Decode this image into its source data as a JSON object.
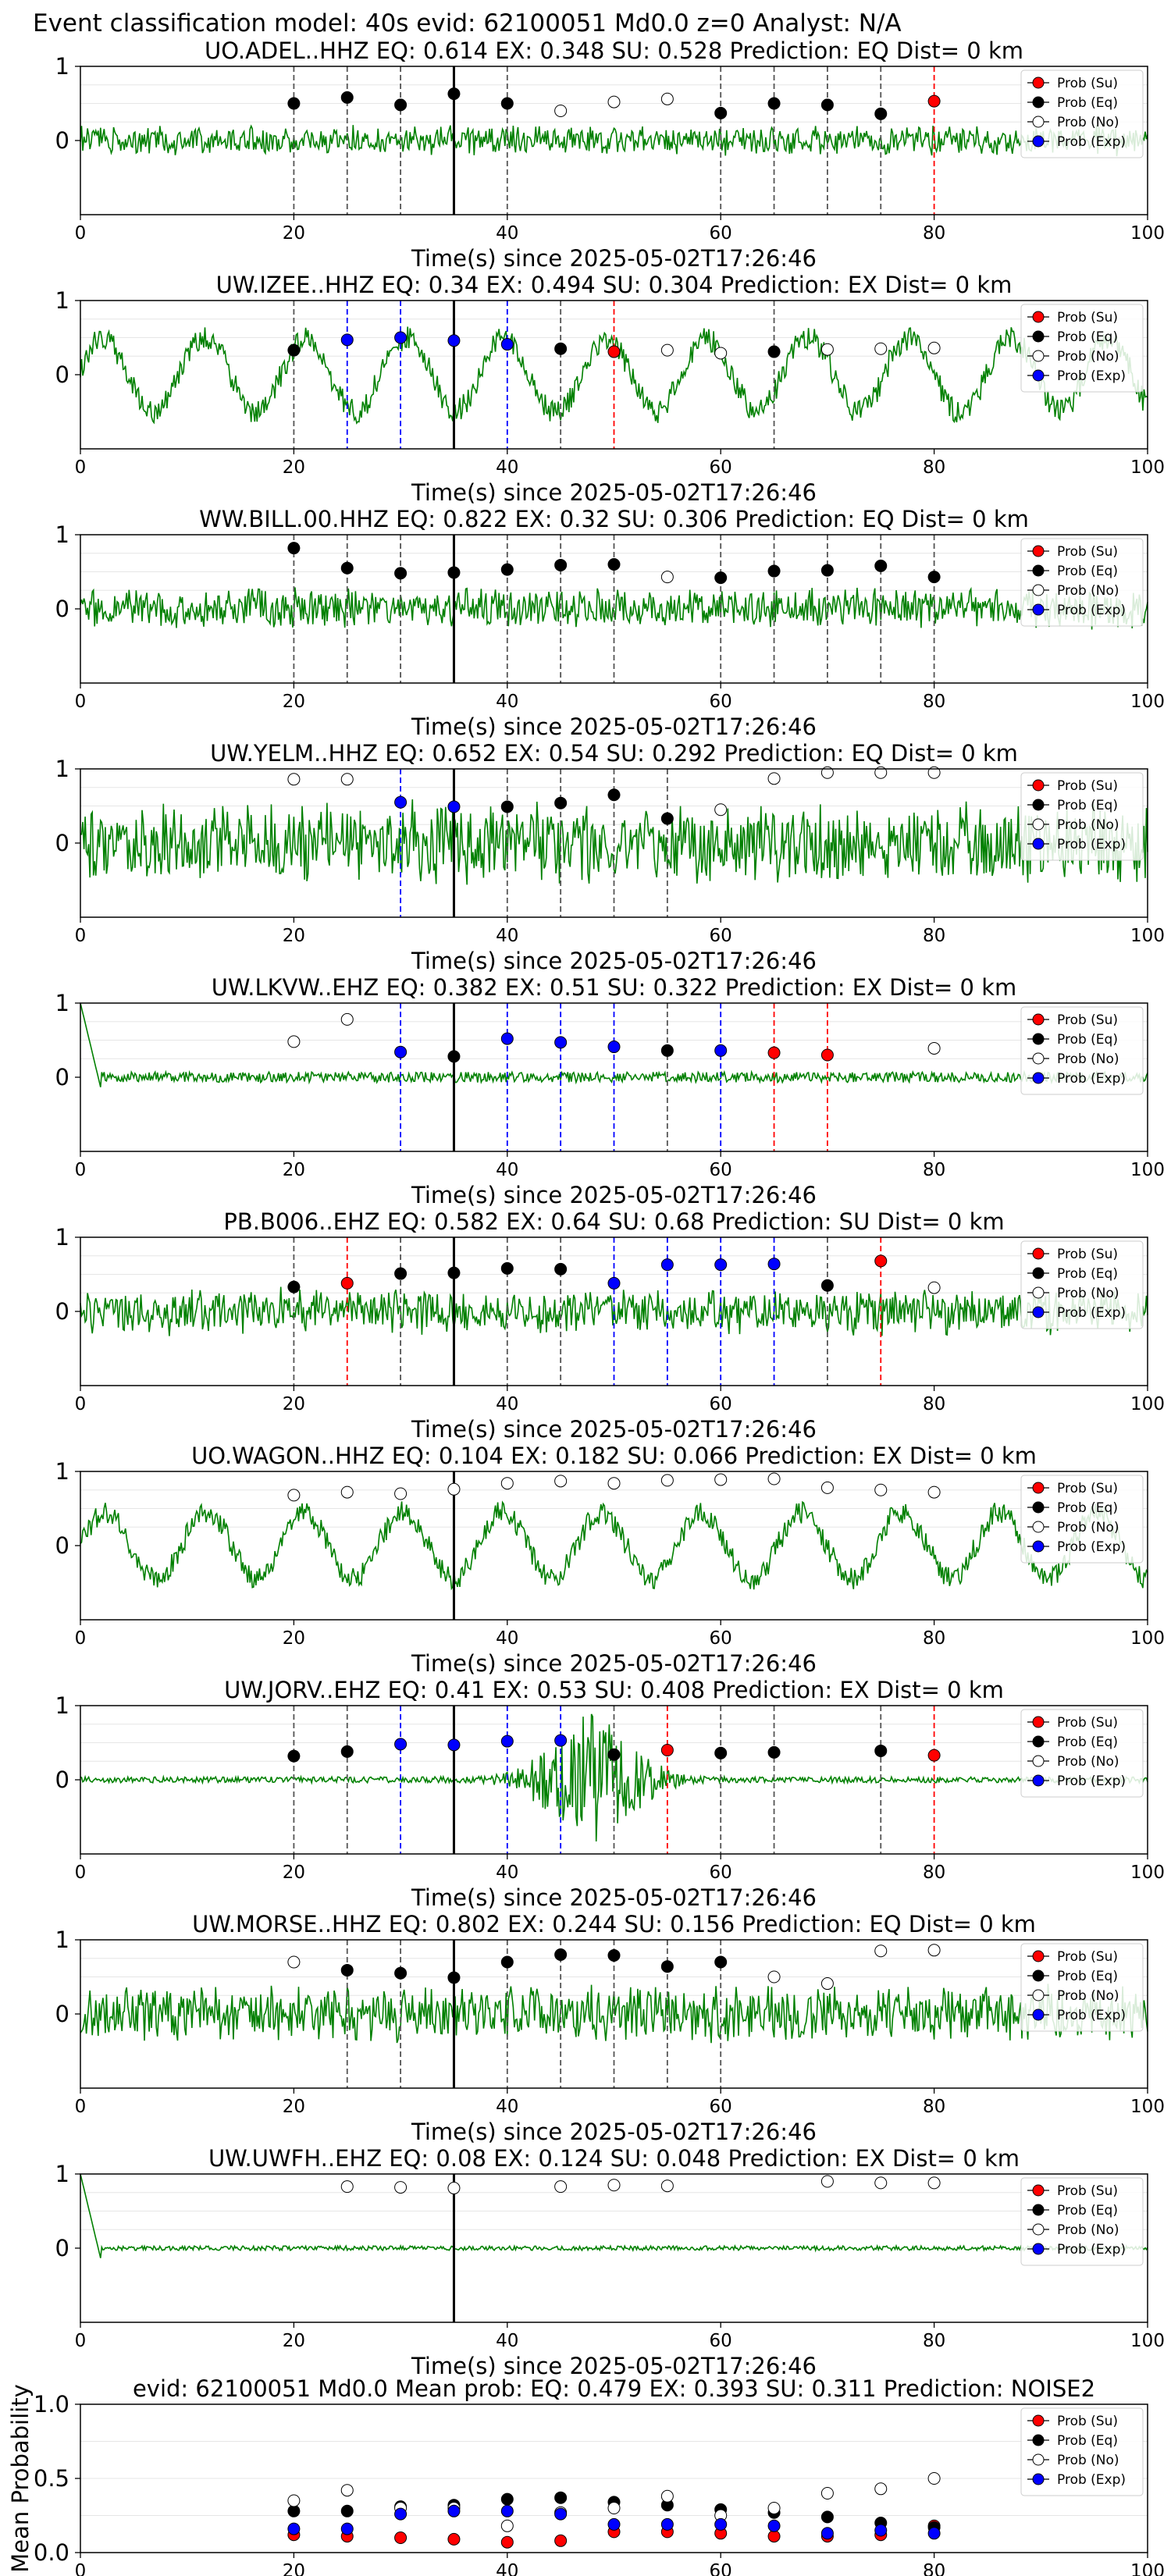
{
  "title": "Event classification model: 40s evid: 62100051 Md0.0 z=0 Analyst: N/A",
  "xlabel": "Time(s) since 2025-05-02T17:26:46",
  "colors": {
    "waveform": "#008000",
    "su": "#ff0000",
    "eq": "#000000",
    "no": "#ffffff",
    "exp": "#0000ff",
    "grid": "#e6e6e6"
  },
  "legend": [
    {
      "key": "su",
      "label": "Prob (Su)"
    },
    {
      "key": "eq",
      "label": "Prob (Eq)"
    },
    {
      "key": "no",
      "label": "Prob (No)"
    },
    {
      "key": "exp",
      "label": "Prob (Exp)"
    }
  ],
  "chart_data": [
    {
      "type": "scatter",
      "station": "UO.ADEL..HHZ",
      "title": "UO.ADEL..HHZ   EQ: 0.614  EX: 0.348  SU: 0.528   Prediction: EQ    Dist= 0 km",
      "xlim": [
        0,
        100
      ],
      "ylim": [
        -1,
        1
      ],
      "xticks": [
        0,
        20,
        40,
        60,
        80,
        100
      ],
      "yticks": [
        1,
        0
      ],
      "grid": true,
      "legend": "upper right",
      "pick_time": 35,
      "waveform": {
        "amp": 0.18,
        "style": "noise",
        "seed": 1
      },
      "points": [
        {
          "x": 20,
          "p": 0.5,
          "c": "eq"
        },
        {
          "x": 25,
          "p": 0.58,
          "c": "eq"
        },
        {
          "x": 30,
          "p": 0.48,
          "c": "eq"
        },
        {
          "x": 35,
          "p": 0.63,
          "c": "eq"
        },
        {
          "x": 40,
          "p": 0.5,
          "c": "eq"
        },
        {
          "x": 45,
          "p": 0.4,
          "c": "no"
        },
        {
          "x": 50,
          "p": 0.52,
          "c": "no"
        },
        {
          "x": 55,
          "p": 0.56,
          "c": "no"
        },
        {
          "x": 60,
          "p": 0.37,
          "c": "eq"
        },
        {
          "x": 65,
          "p": 0.5,
          "c": "eq"
        },
        {
          "x": 70,
          "p": 0.48,
          "c": "eq"
        },
        {
          "x": 75,
          "p": 0.36,
          "c": "eq"
        },
        {
          "x": 80,
          "p": 0.53,
          "c": "su"
        }
      ]
    },
    {
      "type": "scatter",
      "station": "UW.IZEE..HHZ",
      "title": "UW.IZEE..HHZ   EQ: 0.34  EX: 0.494  SU: 0.304   Prediction: EX    Dist= 0 km",
      "xlim": [
        0,
        100
      ],
      "ylim": [
        -1,
        1
      ],
      "xticks": [
        0,
        20,
        40,
        60,
        80,
        100
      ],
      "yticks": [
        1,
        0
      ],
      "grid": true,
      "legend": "upper right",
      "pick_time": 35,
      "waveform": {
        "amp": 0.55,
        "style": "swell",
        "seed": 2
      },
      "points": [
        {
          "x": 20,
          "p": 0.33,
          "c": "eq"
        },
        {
          "x": 25,
          "p": 0.47,
          "c": "exp"
        },
        {
          "x": 30,
          "p": 0.5,
          "c": "exp"
        },
        {
          "x": 35,
          "p": 0.46,
          "c": "exp"
        },
        {
          "x": 40,
          "p": 0.41,
          "c": "exp"
        },
        {
          "x": 45,
          "p": 0.35,
          "c": "eq"
        },
        {
          "x": 50,
          "p": 0.31,
          "c": "su"
        },
        {
          "x": 55,
          "p": 0.33,
          "c": "no"
        },
        {
          "x": 60,
          "p": 0.29,
          "c": "no"
        },
        {
          "x": 65,
          "p": 0.31,
          "c": "eq"
        },
        {
          "x": 70,
          "p": 0.34,
          "c": "no"
        },
        {
          "x": 75,
          "p": 0.35,
          "c": "no"
        },
        {
          "x": 80,
          "p": 0.36,
          "c": "no"
        }
      ]
    },
    {
      "type": "scatter",
      "station": "WW.BILL.00.HHZ",
      "title": "WW.BILL.00.HHZ   EQ: 0.822  EX: 0.32  SU: 0.306   Prediction: EQ    Dist= 0 km",
      "xlim": [
        0,
        100
      ],
      "ylim": [
        -1,
        1
      ],
      "xticks": [
        0,
        20,
        40,
        60,
        80,
        100
      ],
      "yticks": [
        1,
        0
      ],
      "grid": true,
      "legend": "upper right",
      "pick_time": 35,
      "waveform": {
        "amp": 0.25,
        "style": "noise",
        "seed": 3
      },
      "points": [
        {
          "x": 20,
          "p": 0.82,
          "c": "eq"
        },
        {
          "x": 25,
          "p": 0.55,
          "c": "eq"
        },
        {
          "x": 30,
          "p": 0.48,
          "c": "eq"
        },
        {
          "x": 35,
          "p": 0.49,
          "c": "eq"
        },
        {
          "x": 40,
          "p": 0.53,
          "c": "eq"
        },
        {
          "x": 45,
          "p": 0.59,
          "c": "eq"
        },
        {
          "x": 50,
          "p": 0.6,
          "c": "eq"
        },
        {
          "x": 55,
          "p": 0.43,
          "c": "no"
        },
        {
          "x": 60,
          "p": 0.42,
          "c": "eq"
        },
        {
          "x": 65,
          "p": 0.51,
          "c": "eq"
        },
        {
          "x": 70,
          "p": 0.52,
          "c": "eq"
        },
        {
          "x": 75,
          "p": 0.58,
          "c": "eq"
        },
        {
          "x": 80,
          "p": 0.43,
          "c": "eq"
        }
      ]
    },
    {
      "type": "scatter",
      "station": "UW.YELM..HHZ",
      "title": "UW.YELM..HHZ   EQ: 0.652  EX: 0.54  SU: 0.292   Prediction: EQ    Dist= 0 km",
      "xlim": [
        0,
        100
      ],
      "ylim": [
        -1,
        1
      ],
      "xticks": [
        0,
        20,
        40,
        60,
        80,
        100
      ],
      "yticks": [
        1,
        0
      ],
      "grid": true,
      "legend": "upper right",
      "pick_time": 35,
      "waveform": {
        "amp": 0.5,
        "style": "noise",
        "seed": 4
      },
      "points": [
        {
          "x": 20,
          "p": 0.86,
          "c": "no"
        },
        {
          "x": 25,
          "p": 0.86,
          "c": "no"
        },
        {
          "x": 30,
          "p": 0.55,
          "c": "exp"
        },
        {
          "x": 35,
          "p": 0.49,
          "c": "exp"
        },
        {
          "x": 40,
          "p": 0.49,
          "c": "eq"
        },
        {
          "x": 45,
          "p": 0.54,
          "c": "eq"
        },
        {
          "x": 50,
          "p": 0.65,
          "c": "eq"
        },
        {
          "x": 55,
          "p": 0.33,
          "c": "eq"
        },
        {
          "x": 60,
          "p": 0.45,
          "c": "no"
        },
        {
          "x": 65,
          "p": 0.87,
          "c": "no"
        },
        {
          "x": 70,
          "p": 0.95,
          "c": "no"
        },
        {
          "x": 75,
          "p": 0.95,
          "c": "no"
        },
        {
          "x": 80,
          "p": 0.95,
          "c": "no"
        }
      ]
    },
    {
      "type": "scatter",
      "station": "UW.LKVW..EHZ",
      "title": "UW.LKVW..EHZ   EQ: 0.382  EX: 0.51  SU: 0.322   Prediction: EX    Dist= 0 km",
      "xlim": [
        0,
        100
      ],
      "ylim": [
        -1,
        1
      ],
      "xticks": [
        0,
        20,
        40,
        60,
        80,
        100
      ],
      "yticks": [
        1,
        0
      ],
      "grid": true,
      "legend": "upper right",
      "pick_time": 35,
      "waveform": {
        "amp": 0.07,
        "style": "start",
        "seed": 5
      },
      "points": [
        {
          "x": 20,
          "p": 0.48,
          "c": "no"
        },
        {
          "x": 25,
          "p": 0.78,
          "c": "no"
        },
        {
          "x": 30,
          "p": 0.34,
          "c": "exp"
        },
        {
          "x": 35,
          "p": 0.28,
          "c": "eq"
        },
        {
          "x": 40,
          "p": 0.52,
          "c": "exp"
        },
        {
          "x": 45,
          "p": 0.47,
          "c": "exp"
        },
        {
          "x": 50,
          "p": 0.41,
          "c": "exp"
        },
        {
          "x": 55,
          "p": 0.36,
          "c": "eq"
        },
        {
          "x": 60,
          "p": 0.36,
          "c": "exp"
        },
        {
          "x": 65,
          "p": 0.33,
          "c": "su"
        },
        {
          "x": 70,
          "p": 0.3,
          "c": "su"
        },
        {
          "x": 80,
          "p": 0.39,
          "c": "no"
        }
      ]
    },
    {
      "type": "scatter",
      "station": "PB.B006..EHZ",
      "title": "PB.B006..EHZ   EQ: 0.582  EX: 0.64  SU: 0.68   Prediction: SU    Dist= 0 km",
      "xlim": [
        0,
        100
      ],
      "ylim": [
        -1,
        1
      ],
      "xticks": [
        0,
        20,
        40,
        60,
        80,
        100
      ],
      "yticks": [
        1,
        0
      ],
      "grid": true,
      "legend": "upper right",
      "pick_time": 35,
      "waveform": {
        "amp": 0.28,
        "style": "noise",
        "seed": 6
      },
      "points": [
        {
          "x": 20,
          "p": 0.33,
          "c": "eq"
        },
        {
          "x": 25,
          "p": 0.38,
          "c": "su"
        },
        {
          "x": 30,
          "p": 0.51,
          "c": "eq"
        },
        {
          "x": 35,
          "p": 0.52,
          "c": "eq"
        },
        {
          "x": 40,
          "p": 0.58,
          "c": "eq"
        },
        {
          "x": 45,
          "p": 0.57,
          "c": "eq"
        },
        {
          "x": 50,
          "p": 0.38,
          "c": "exp"
        },
        {
          "x": 55,
          "p": 0.63,
          "c": "exp"
        },
        {
          "x": 60,
          "p": 0.63,
          "c": "exp"
        },
        {
          "x": 65,
          "p": 0.64,
          "c": "exp"
        },
        {
          "x": 70,
          "p": 0.35,
          "c": "eq"
        },
        {
          "x": 75,
          "p": 0.68,
          "c": "su"
        },
        {
          "x": 80,
          "p": 0.32,
          "c": "no"
        }
      ]
    },
    {
      "type": "scatter",
      "station": "UO.WAGON..HHZ",
      "title": "UO.WAGON..HHZ   EQ: 0.104  EX: 0.182  SU: 0.066   Prediction: EX    Dist= 0 km",
      "xlim": [
        0,
        100
      ],
      "ylim": [
        -1,
        1
      ],
      "xticks": [
        0,
        20,
        40,
        60,
        80,
        100
      ],
      "yticks": [
        1,
        0
      ],
      "grid": true,
      "legend": "upper right",
      "pick_time": 35,
      "waveform": {
        "amp": 0.5,
        "style": "swell",
        "seed": 7
      },
      "points": [
        {
          "x": 20,
          "p": 0.68,
          "c": "no"
        },
        {
          "x": 25,
          "p": 0.72,
          "c": "no"
        },
        {
          "x": 30,
          "p": 0.7,
          "c": "no"
        },
        {
          "x": 35,
          "p": 0.76,
          "c": "no"
        },
        {
          "x": 40,
          "p": 0.84,
          "c": "no"
        },
        {
          "x": 45,
          "p": 0.87,
          "c": "no"
        },
        {
          "x": 50,
          "p": 0.84,
          "c": "no"
        },
        {
          "x": 55,
          "p": 0.88,
          "c": "no"
        },
        {
          "x": 60,
          "p": 0.89,
          "c": "no"
        },
        {
          "x": 65,
          "p": 0.9,
          "c": "no"
        },
        {
          "x": 70,
          "p": 0.78,
          "c": "no"
        },
        {
          "x": 75,
          "p": 0.75,
          "c": "no"
        },
        {
          "x": 80,
          "p": 0.72,
          "c": "no"
        }
      ]
    },
    {
      "type": "scatter",
      "station": "UW.JORV..EHZ",
      "title": "UW.JORV..EHZ   EQ: 0.41  EX: 0.53  SU: 0.408   Prediction: EX    Dist= 0 km",
      "xlim": [
        0,
        100
      ],
      "ylim": [
        -1,
        1
      ],
      "xticks": [
        0,
        20,
        40,
        60,
        80,
        100
      ],
      "yticks": [
        1,
        0
      ],
      "grid": true,
      "legend": "upper right",
      "pick_time": 35,
      "waveform": {
        "amp": 0.04,
        "style": "burst",
        "seed": 8
      },
      "points": [
        {
          "x": 20,
          "p": 0.32,
          "c": "eq"
        },
        {
          "x": 25,
          "p": 0.38,
          "c": "eq"
        },
        {
          "x": 30,
          "p": 0.48,
          "c": "exp"
        },
        {
          "x": 35,
          "p": 0.47,
          "c": "exp"
        },
        {
          "x": 40,
          "p": 0.52,
          "c": "exp"
        },
        {
          "x": 45,
          "p": 0.53,
          "c": "exp"
        },
        {
          "x": 50,
          "p": 0.34,
          "c": "eq"
        },
        {
          "x": 55,
          "p": 0.4,
          "c": "su"
        },
        {
          "x": 60,
          "p": 0.36,
          "c": "eq"
        },
        {
          "x": 65,
          "p": 0.37,
          "c": "eq"
        },
        {
          "x": 75,
          "p": 0.39,
          "c": "eq"
        },
        {
          "x": 80,
          "p": 0.33,
          "c": "su"
        }
      ]
    },
    {
      "type": "scatter",
      "station": "UW.MORSE..HHZ",
      "title": "UW.MORSE..HHZ   EQ: 0.802  EX: 0.244  SU: 0.156   Prediction: EQ    Dist= 0 km",
      "xlim": [
        0,
        100
      ],
      "ylim": [
        -1,
        1
      ],
      "xticks": [
        0,
        20,
        40,
        60,
        80,
        100
      ],
      "yticks": [
        1,
        0
      ],
      "grid": true,
      "legend": "upper right",
      "pick_time": 35,
      "waveform": {
        "amp": 0.35,
        "style": "noise",
        "seed": 9
      },
      "points": [
        {
          "x": 20,
          "p": 0.7,
          "c": "no"
        },
        {
          "x": 25,
          "p": 0.59,
          "c": "eq"
        },
        {
          "x": 30,
          "p": 0.55,
          "c": "eq"
        },
        {
          "x": 35,
          "p": 0.49,
          "c": "eq"
        },
        {
          "x": 40,
          "p": 0.7,
          "c": "eq"
        },
        {
          "x": 45,
          "p": 0.8,
          "c": "eq"
        },
        {
          "x": 50,
          "p": 0.79,
          "c": "eq"
        },
        {
          "x": 55,
          "p": 0.64,
          "c": "eq"
        },
        {
          "x": 60,
          "p": 0.7,
          "c": "eq"
        },
        {
          "x": 65,
          "p": 0.5,
          "c": "no"
        },
        {
          "x": 70,
          "p": 0.41,
          "c": "no"
        },
        {
          "x": 75,
          "p": 0.85,
          "c": "no"
        },
        {
          "x": 80,
          "p": 0.86,
          "c": "no"
        }
      ]
    },
    {
      "type": "scatter",
      "station": "UW.UWFH..EHZ",
      "title": "UW.UWFH..EHZ   EQ: 0.08  EX: 0.124  SU: 0.048   Prediction: EX    Dist= 0 km",
      "xlim": [
        0,
        100
      ],
      "ylim": [
        -1,
        1
      ],
      "xticks": [
        0,
        20,
        40,
        60,
        80,
        100
      ],
      "yticks": [
        1,
        0
      ],
      "grid": true,
      "legend": "upper right",
      "pick_time": 35,
      "waveform": {
        "amp": 0.03,
        "style": "start",
        "seed": 10
      },
      "points": [
        {
          "x": 25,
          "p": 0.83,
          "c": "no"
        },
        {
          "x": 30,
          "p": 0.82,
          "c": "no"
        },
        {
          "x": 35,
          "p": 0.81,
          "c": "no"
        },
        {
          "x": 45,
          "p": 0.83,
          "c": "no"
        },
        {
          "x": 50,
          "p": 0.85,
          "c": "no"
        },
        {
          "x": 55,
          "p": 0.84,
          "c": "no"
        },
        {
          "x": 70,
          "p": 0.9,
          "c": "no"
        },
        {
          "x": 75,
          "p": 0.88,
          "c": "no"
        },
        {
          "x": 80,
          "p": 0.88,
          "c": "no"
        }
      ]
    },
    {
      "type": "scatter",
      "station": "mean",
      "title": "evid: 62100051  Md0.0   Mean prob:   EQ: 0.479  EX: 0.393  SU: 0.311   Prediction: NOISE2",
      "ylabel": "Mean Probability",
      "xlim": [
        0,
        100
      ],
      "ylim": [
        0,
        1
      ],
      "xticks": [
        0,
        20,
        40,
        60,
        80,
        100
      ],
      "yticks": [
        1.0,
        0.5,
        0.0
      ],
      "ytick_labels": [
        "1.0",
        "0.5",
        "0.0"
      ],
      "grid": true,
      "legend": "upper right",
      "series": [
        {
          "key": "su",
          "x": [
            20,
            25,
            30,
            35,
            40,
            45,
            50,
            55,
            60,
            65,
            70,
            75,
            80
          ],
          "y": [
            0.12,
            0.11,
            0.1,
            0.09,
            0.07,
            0.08,
            0.14,
            0.14,
            0.13,
            0.11,
            0.11,
            0.12,
            0.18
          ]
        },
        {
          "key": "eq",
          "x": [
            20,
            25,
            30,
            35,
            40,
            45,
            50,
            55,
            60,
            65,
            70,
            75,
            80
          ],
          "y": [
            0.28,
            0.28,
            0.31,
            0.32,
            0.36,
            0.37,
            0.34,
            0.32,
            0.29,
            0.27,
            0.24,
            0.2,
            0.17
          ]
        },
        {
          "key": "no",
          "x": [
            20,
            25,
            30,
            35,
            40,
            45,
            50,
            55,
            60,
            65,
            70,
            75,
            80
          ],
          "y": [
            0.35,
            0.42,
            0.3,
            0.3,
            0.18,
            0.27,
            0.3,
            0.38,
            0.25,
            0.3,
            0.4,
            0.43,
            0.5
          ]
        },
        {
          "key": "exp",
          "x": [
            20,
            25,
            30,
            35,
            40,
            45,
            50,
            55,
            60,
            65,
            70,
            75,
            80
          ],
          "y": [
            0.16,
            0.16,
            0.26,
            0.28,
            0.28,
            0.26,
            0.19,
            0.19,
            0.19,
            0.18,
            0.13,
            0.15,
            0.13
          ]
        }
      ]
    }
  ]
}
